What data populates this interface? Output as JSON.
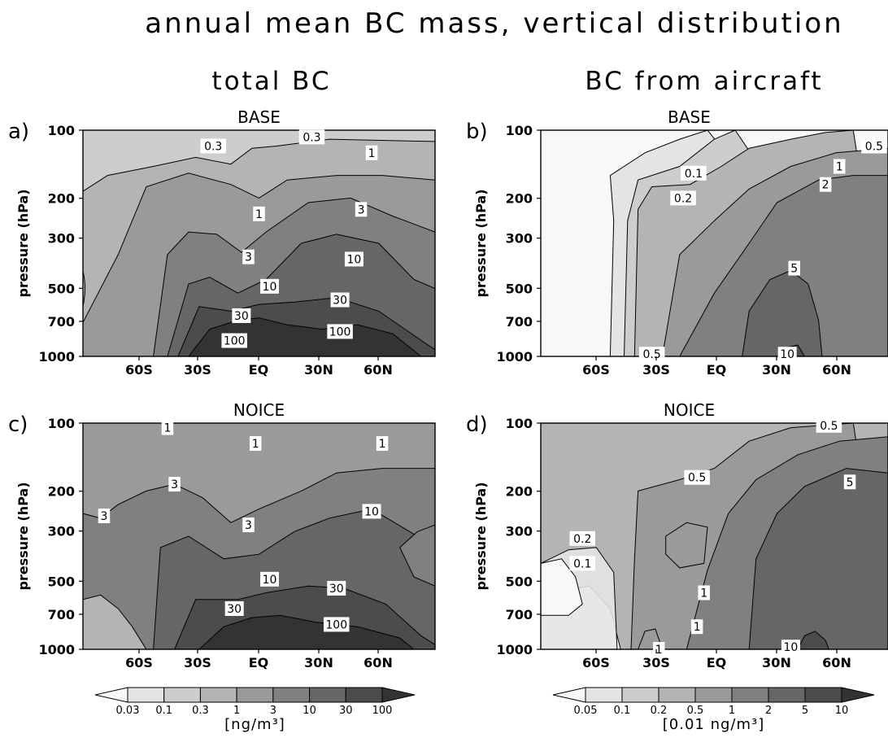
{
  "title": "annual mean BC mass, vertical distribution",
  "column_titles": [
    "total BC",
    "BC from aircraft"
  ],
  "chart_data": [
    {
      "type": "heatmap",
      "panel": "a)",
      "title": "BASE",
      "ylabel": "pressure (hPa)",
      "xticks": [
        "60S",
        "30S",
        "EQ",
        "30N",
        "60N"
      ],
      "yticks": [
        100,
        200,
        300,
        500,
        700,
        1000
      ],
      "y_scale": "log (pressure, inverted)",
      "levels": [
        0.03,
        0.1,
        0.3,
        1,
        3,
        10,
        30,
        100
      ],
      "units": "[ng/m³]",
      "contour_labels": [
        "0.3",
        "0.3",
        "1",
        "1",
        "3",
        "3",
        "10",
        "10",
        "30",
        "30",
        "100",
        "100"
      ]
    },
    {
      "type": "heatmap",
      "panel": "b)",
      "title": "BASE",
      "ylabel": "pressure (hPa)",
      "xticks": [
        "60S",
        "30S",
        "EQ",
        "30N",
        "60N"
      ],
      "yticks": [
        100,
        200,
        300,
        500,
        700,
        1000
      ],
      "y_scale": "log (pressure, inverted)",
      "levels": [
        0.05,
        0.1,
        0.2,
        0.5,
        1,
        2,
        5,
        10
      ],
      "units": "[0.01 ng/m³]",
      "contour_labels": [
        "0.1",
        "0.2",
        "0.5",
        "1",
        "2",
        "5",
        "0.5",
        "10"
      ]
    },
    {
      "type": "heatmap",
      "panel": "c)",
      "title": "NOICE",
      "ylabel": "pressure (hPa)",
      "xticks": [
        "60S",
        "30S",
        "EQ",
        "30N",
        "60N"
      ],
      "yticks": [
        100,
        200,
        300,
        500,
        700,
        1000
      ],
      "y_scale": "log (pressure, inverted)",
      "levels": [
        0.03,
        0.1,
        0.3,
        1,
        3,
        10,
        30,
        100
      ],
      "units": "[ng/m³]",
      "contour_labels": [
        "1",
        "1",
        "1",
        "3",
        "3",
        "3",
        "10",
        "10",
        "30",
        "30",
        "100"
      ]
    },
    {
      "type": "heatmap",
      "panel": "d)",
      "title": "NOICE",
      "ylabel": "pressure (hPa)",
      "xticks": [
        "60S",
        "30S",
        "EQ",
        "30N",
        "60N"
      ],
      "yticks": [
        100,
        200,
        300,
        500,
        700,
        1000
      ],
      "y_scale": "log (pressure, inverted)",
      "levels": [
        0.05,
        0.1,
        0.2,
        0.5,
        1,
        2,
        5,
        10
      ],
      "units": "[0.01 ng/m³]",
      "contour_labels": [
        "0.5",
        "0.5",
        "5",
        "0.2",
        "0.1",
        "1",
        "1",
        "1",
        "10"
      ]
    }
  ],
  "colorbars": [
    {
      "labels": [
        "0.03",
        "0.1",
        "0.3",
        "1",
        "3",
        "10",
        "30",
        "100"
      ],
      "units": "[ng/m³]"
    },
    {
      "labels": [
        "0.05",
        "0.1",
        "0.2",
        "0.5",
        "1",
        "2",
        "5",
        "10"
      ],
      "units": "[0.01 ng/m³]"
    }
  ],
  "colors": {
    "shades": [
      "#f8f8f8",
      "#e4e4e4",
      "#cdcdcd",
      "#b4b4b4",
      "#9a9a9a",
      "#808080",
      "#666666",
      "#4c4c4c",
      "#333333"
    ],
    "line": "#000000"
  }
}
